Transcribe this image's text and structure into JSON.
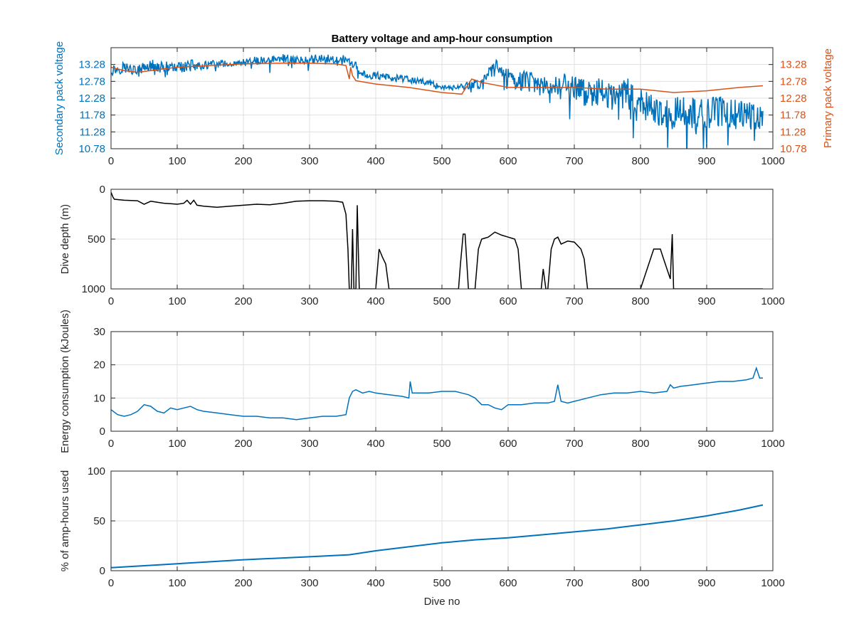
{
  "chart_data": [
    {
      "type": "line",
      "title": "Battery voltage and amp-hour consumption",
      "xlabel": "",
      "ylabel": "Secondary pack voltage",
      "ylabel_right": "Primary pack voltage",
      "xlim": [
        0,
        1000
      ],
      "ylim": [
        10.78,
        13.78
      ],
      "ylim_right": [
        10.78,
        13.78
      ],
      "x_ticks": [
        "0",
        "100",
        "200",
        "300",
        "400",
        "500",
        "600",
        "700",
        "800",
        "900",
        "1000"
      ],
      "y_ticks": [
        "10.78",
        "11.28",
        "11.78",
        "12.28",
        "12.78",
        "13.28"
      ],
      "y_ticks_right": [
        "10.78",
        "11.28",
        "11.78",
        "12.28",
        "12.78",
        "13.28"
      ],
      "grid": true,
      "series": [
        {
          "axis": "left",
          "color": "#0072bd",
          "x": [
            0,
            20,
            40,
            60,
            80,
            100,
            120,
            140,
            160,
            180,
            200,
            220,
            240,
            260,
            280,
            300,
            320,
            340,
            360,
            370,
            380,
            400,
            420,
            440,
            460,
            480,
            500,
            520,
            540,
            560,
            570,
            580,
            590,
            600,
            620,
            640,
            660,
            680,
            700,
            720,
            740,
            760,
            780,
            800,
            820,
            840,
            860,
            880,
            900,
            920,
            940,
            960,
            980,
            985
          ],
          "y": [
            13.1,
            13.2,
            13.1,
            13.25,
            13.2,
            13.2,
            13.25,
            13.25,
            13.3,
            13.3,
            13.35,
            13.4,
            13.4,
            13.45,
            13.4,
            13.45,
            13.45,
            13.45,
            13.4,
            13.2,
            13.0,
            12.95,
            12.9,
            12.85,
            12.8,
            12.75,
            12.6,
            12.6,
            12.65,
            12.75,
            13.0,
            13.2,
            13.1,
            12.9,
            12.8,
            12.7,
            12.6,
            12.7,
            12.6,
            12.4,
            12.5,
            12.2,
            12.4,
            12.1,
            11.9,
            11.8,
            11.9,
            11.8,
            11.85,
            11.9,
            11.8,
            11.8,
            11.75,
            11.75
          ],
          "spread": [
            0.25,
            0.3,
            0.25,
            0.3,
            0.3,
            0.2,
            0.3,
            0.2,
            0.2,
            0.15,
            0.15,
            0.2,
            0.2,
            0.25,
            0.2,
            0.25,
            0.25,
            0.25,
            0.2,
            0.25,
            0.2,
            0.2,
            0.2,
            0.2,
            0.15,
            0.15,
            0.1,
            0.1,
            0.2,
            0.3,
            0.3,
            0.4,
            0.4,
            0.5,
            0.5,
            0.6,
            0.5,
            0.6,
            0.6,
            0.7,
            0.7,
            0.8,
            0.8,
            0.8,
            0.9,
            0.9,
            0.8,
            0.8,
            0.8,
            0.8,
            0.8,
            0.8,
            0.7,
            0.6
          ]
        },
        {
          "axis": "right",
          "color": "#d95319",
          "x": [
            0,
            10,
            20,
            40,
            60,
            80,
            100,
            150,
            200,
            250,
            300,
            340,
            355,
            360,
            362,
            365,
            370,
            400,
            450,
            500,
            530,
            545,
            560,
            600,
            650,
            700,
            750,
            800,
            850,
            900,
            950,
            985
          ],
          "y": [
            13.2,
            13.15,
            13.1,
            13.05,
            13.1,
            13.15,
            13.2,
            13.25,
            13.3,
            13.32,
            13.32,
            13.3,
            13.25,
            12.85,
            13.2,
            12.95,
            12.8,
            12.7,
            12.6,
            12.45,
            12.4,
            12.85,
            12.75,
            12.6,
            12.6,
            12.6,
            12.55,
            12.55,
            12.45,
            12.5,
            12.6,
            12.65
          ]
        }
      ]
    },
    {
      "type": "line",
      "title": "",
      "xlabel": "",
      "ylabel": "Dive depth (m)",
      "xlim": [
        0,
        1000
      ],
      "ylim": [
        0,
        1000
      ],
      "y_reversed": true,
      "x_ticks": [
        "0",
        "100",
        "200",
        "300",
        "400",
        "500",
        "600",
        "700",
        "800",
        "900",
        "1000"
      ],
      "y_ticks": [
        "0",
        "500",
        "1000"
      ],
      "grid": true,
      "series": [
        {
          "color": "#000000",
          "x": [
            0,
            3,
            5,
            20,
            40,
            50,
            60,
            70,
            80,
            90,
            100,
            110,
            115,
            120,
            125,
            130,
            140,
            160,
            180,
            200,
            220,
            240,
            260,
            280,
            300,
            320,
            340,
            350,
            355,
            358,
            360,
            363,
            365,
            367,
            370,
            372,
            375,
            380,
            400,
            405,
            410,
            415,
            420,
            440,
            460,
            480,
            500,
            520,
            525,
            528,
            532,
            535,
            540,
            545,
            550,
            555,
            560,
            570,
            580,
            590,
            600,
            610,
            615,
            620,
            630,
            640,
            650,
            653,
            657,
            660,
            665,
            670,
            675,
            680,
            690,
            700,
            710,
            715,
            720,
            740,
            760,
            780,
            790,
            800,
            810,
            820,
            830,
            835,
            840,
            845,
            848,
            850,
            860,
            900,
            950,
            985
          ],
          "y": [
            30,
            80,
            100,
            110,
            115,
            150,
            120,
            130,
            140,
            145,
            150,
            140,
            110,
            150,
            110,
            160,
            170,
            180,
            170,
            160,
            150,
            155,
            140,
            120,
            115,
            115,
            120,
            130,
            250,
            600,
            1000,
            1000,
            400,
            1000,
            1000,
            160,
            1000,
            1000,
            1000,
            600,
            680,
            750,
            1000,
            1000,
            1000,
            1000,
            1000,
            1000,
            1000,
            750,
            450,
            450,
            1000,
            1000,
            1000,
            600,
            500,
            480,
            430,
            460,
            480,
            500,
            600,
            1000,
            1000,
            1000,
            1000,
            800,
            1000,
            1000,
            600,
            500,
            480,
            550,
            520,
            530,
            600,
            700,
            1000,
            1000,
            1000,
            1000,
            1000,
            1000,
            800,
            600,
            600,
            700,
            800,
            900,
            450,
            1000,
            1000,
            1000,
            1000,
            1000
          ]
        }
      ]
    },
    {
      "type": "line",
      "title": "",
      "xlabel": "",
      "ylabel": "Energy consumption (kJoules)",
      "xlim": [
        0,
        1000
      ],
      "ylim": [
        0,
        30
      ],
      "x_ticks": [
        "0",
        "100",
        "200",
        "300",
        "400",
        "500",
        "600",
        "700",
        "800",
        "900",
        "1000"
      ],
      "y_ticks": [
        "0",
        "10",
        "20",
        "30"
      ],
      "grid": true,
      "series": [
        {
          "color": "#0072bd",
          "x": [
            0,
            10,
            20,
            30,
            40,
            50,
            60,
            70,
            80,
            90,
            100,
            110,
            120,
            130,
            140,
            160,
            180,
            200,
            220,
            240,
            260,
            280,
            300,
            320,
            340,
            355,
            360,
            365,
            370,
            380,
            390,
            400,
            420,
            440,
            450,
            452,
            455,
            460,
            480,
            500,
            520,
            530,
            540,
            550,
            560,
            570,
            580,
            590,
            600,
            620,
            640,
            660,
            670,
            675,
            680,
            690,
            700,
            720,
            740,
            760,
            780,
            800,
            820,
            840,
            845,
            850,
            860,
            880,
            900,
            920,
            940,
            960,
            970,
            975,
            980,
            985
          ],
          "y": [
            6.5,
            5,
            4.5,
            5,
            6,
            8,
            7.5,
            6,
            5.5,
            7,
            6.5,
            7,
            7.5,
            6.5,
            6,
            5.5,
            5,
            4.5,
            4.5,
            4,
            4,
            3.5,
            4,
            4.5,
            4.5,
            5,
            10,
            12,
            12.5,
            11.5,
            12,
            11.5,
            11,
            10.5,
            10,
            15,
            11.5,
            11.5,
            11.5,
            12,
            12,
            11.5,
            11,
            10,
            8,
            8,
            7,
            6.5,
            8,
            8,
            8.5,
            8.5,
            9,
            14,
            9,
            8.5,
            9,
            10,
            11,
            11.5,
            11.5,
            12,
            11.5,
            12,
            14,
            13,
            13.5,
            14,
            14.5,
            15,
            15,
            15.5,
            16,
            19,
            16,
            16
          ]
        }
      ]
    },
    {
      "type": "line",
      "title": "",
      "xlabel": "Dive no",
      "ylabel": "% of amp-hours used",
      "xlim": [
        0,
        1000
      ],
      "ylim": [
        0,
        100
      ],
      "x_ticks": [
        "0",
        "100",
        "200",
        "300",
        "400",
        "500",
        "600",
        "700",
        "800",
        "900",
        "1000"
      ],
      "y_ticks": [
        "0",
        "50",
        "100"
      ],
      "grid": true,
      "series": [
        {
          "color": "#0072bd",
          "x": [
            0,
            100,
            200,
            300,
            360,
            400,
            450,
            500,
            550,
            600,
            650,
            700,
            750,
            800,
            850,
            900,
            950,
            985
          ],
          "y": [
            3,
            7,
            11,
            14,
            16,
            20,
            24,
            28,
            31,
            33,
            36,
            39,
            42,
            46,
            50,
            55,
            61,
            66
          ]
        }
      ]
    }
  ]
}
